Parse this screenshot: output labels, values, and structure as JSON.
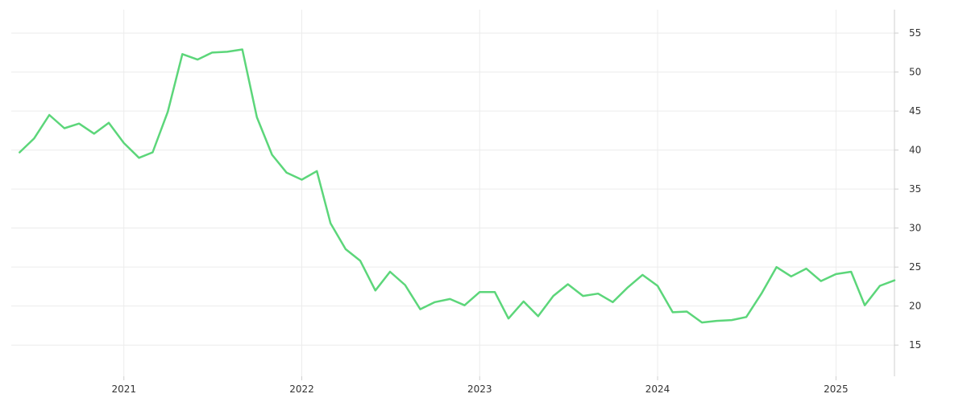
{
  "chart_data": {
    "type": "line",
    "title": "",
    "xlabel": "",
    "ylabel": "",
    "x_axis_labels": [
      "2021",
      "2022",
      "2023",
      "2024",
      "2025"
    ],
    "y_axis_labels": [
      "15",
      "20",
      "25",
      "30",
      "35",
      "40",
      "45",
      "50",
      "55"
    ],
    "ylim": [
      11,
      58
    ],
    "xlim": [
      "2020-05-15",
      "2025-05-01"
    ],
    "grid": true,
    "y_axis_position": "right",
    "legend": "none",
    "colors": {
      "line": "#5cd67a"
    },
    "series": [
      {
        "x": [
          "2020-06-01",
          "2020-07-01",
          "2020-08-01",
          "2020-09-01",
          "2020-10-01",
          "2020-11-01",
          "2020-12-01",
          "2021-01-01",
          "2021-02-01",
          "2021-03-01",
          "2021-04-01",
          "2021-05-01",
          "2021-06-01",
          "2021-07-01",
          "2021-08-01",
          "2021-09-01",
          "2021-10-01",
          "2021-11-01",
          "2021-12-01",
          "2022-01-01",
          "2022-02-01",
          "2022-03-01",
          "2022-04-01",
          "2022-05-01",
          "2022-06-01",
          "2022-07-01",
          "2022-08-01",
          "2022-09-01",
          "2022-10-01",
          "2022-11-01",
          "2022-12-01",
          "2023-01-01",
          "2023-02-01",
          "2023-03-01",
          "2023-04-01",
          "2023-05-01",
          "2023-06-01",
          "2023-07-01",
          "2023-08-01",
          "2023-09-01",
          "2023-10-01",
          "2023-11-01",
          "2023-12-01",
          "2024-01-01",
          "2024-02-01",
          "2024-03-01",
          "2024-04-01",
          "2024-05-01",
          "2024-06-01",
          "2024-07-01",
          "2024-08-01",
          "2024-09-01",
          "2024-10-01",
          "2024-11-01",
          "2024-12-01",
          "2025-01-01",
          "2025-02-01",
          "2025-03-01",
          "2025-04-01",
          "2025-05-01"
        ],
        "values": [
          39.7,
          41.5,
          44.5,
          42.8,
          43.4,
          42.1,
          43.5,
          40.9,
          39.0,
          39.7,
          44.9,
          52.3,
          51.6,
          52.5,
          52.6,
          52.9,
          44.2,
          39.4,
          37.1,
          36.2,
          37.3,
          30.6,
          27.3,
          25.8,
          22.0,
          24.4,
          22.7,
          19.6,
          20.5,
          20.9,
          20.1,
          21.8,
          21.8,
          18.4,
          20.6,
          18.7,
          21.3,
          22.8,
          21.3,
          21.6,
          20.5,
          22.4,
          24.0,
          22.6,
          19.2,
          19.3,
          17.9,
          18.1,
          18.2,
          18.6,
          21.6,
          25.0,
          23.8,
          24.8,
          23.2,
          24.1,
          24.4,
          20.1,
          22.6,
          23.3
        ]
      }
    ]
  }
}
